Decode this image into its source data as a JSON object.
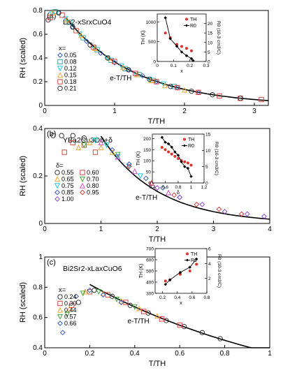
{
  "chart_data": [
    {
      "type": "scatter",
      "panel_label": "(a)",
      "compound": "La2-xSrxCuO4",
      "ylabel": "RH (scaled)",
      "xlabel": "T/TH",
      "xlim": [
        0,
        3.2
      ],
      "ylim": [
        0,
        0.8
      ],
      "xticks": [
        0,
        1,
        2,
        3
      ],
      "yticks": [
        0.0,
        0.2,
        0.4,
        0.6,
        0.8
      ],
      "legend_title": "x=",
      "fit_label": "e-T/TH",
      "fit_start": 0.3,
      "series": [
        {
          "name": "0.05",
          "marker": "diamond",
          "color": "#2a52be",
          "x": [
            0.2,
            0.4,
            0.6,
            0.8,
            1.0,
            1.2,
            1.4,
            1.6,
            1.9,
            2.2
          ],
          "y": [
            0.78,
            0.66,
            0.54,
            0.44,
            0.36,
            0.3,
            0.25,
            0.2,
            0.15,
            0.11
          ]
        },
        {
          "name": "0.08",
          "marker": "square",
          "color": "#1fa0a0",
          "x": [
            0.15,
            0.35,
            0.55,
            0.75,
            0.95,
            1.15,
            1.35,
            1.55,
            1.85
          ],
          "y": [
            0.79,
            0.7,
            0.57,
            0.47,
            0.38,
            0.31,
            0.26,
            0.21,
            0.16
          ]
        },
        {
          "name": "0.12",
          "marker": "triangle-down",
          "color": "#00c8e6",
          "x": [
            0.1,
            0.3,
            0.5,
            0.7,
            0.9,
            1.1,
            1.3,
            1.5,
            1.7
          ],
          "y": [
            0.77,
            0.73,
            0.6,
            0.49,
            0.4,
            0.33,
            0.27,
            0.22,
            0.18
          ]
        },
        {
          "name": "0.15",
          "marker": "triangle-up",
          "color": "#f0a020",
          "x": [
            0.12,
            0.32,
            0.52,
            0.72,
            0.92,
            1.12,
            1.32,
            1.52,
            1.72,
            2.0
          ],
          "y": [
            0.78,
            0.72,
            0.59,
            0.48,
            0.4,
            0.32,
            0.26,
            0.21,
            0.17,
            0.13
          ]
        },
        {
          "name": "0.18",
          "marker": "square",
          "color": "#e0302a",
          "x": [
            0.08,
            0.25,
            0.45,
            0.7,
            1.0,
            1.3,
            1.6,
            1.9,
            2.2,
            2.5,
            2.8,
            3.1
          ],
          "y": [
            0.74,
            0.76,
            0.63,
            0.49,
            0.37,
            0.27,
            0.2,
            0.15,
            0.11,
            0.08,
            0.06,
            0.05
          ]
        },
        {
          "name": "0.21",
          "marker": "circle",
          "color": "#222222",
          "x": [
            0.05,
            0.2,
            0.4,
            0.65,
            0.9,
            1.2,
            1.5,
            1.8,
            2.1,
            2.4,
            2.8
          ],
          "y": [
            0.72,
            0.78,
            0.66,
            0.51,
            0.4,
            0.3,
            0.22,
            0.16,
            0.12,
            0.09,
            0.06
          ]
        }
      ],
      "inset": {
        "xlabel": "x",
        "ylabel_left": "TH (K)",
        "ylabel_right": "R0 (10-3 cm3/C)",
        "xlim": [
          0,
          0.3
        ],
        "ylim_left": [
          0,
          1200
        ],
        "ylim_right": [
          0,
          25
        ],
        "xticks": [
          0.0,
          0.1,
          0.2,
          0.3
        ],
        "yticks_left": [
          0,
          500,
          1000
        ],
        "yticks_right": [
          0,
          5,
          10,
          15,
          20
        ],
        "legend": [
          "TH",
          "R0"
        ],
        "TH": {
          "x": [
            0.05,
            0.08,
            0.12,
            0.15,
            0.18,
            0.21
          ],
          "y": [
            720,
            600,
            430,
            380,
            330,
            270
          ]
        },
        "R0": {
          "x": [
            0.05,
            0.08,
            0.12,
            0.15,
            0.18,
            0.21,
            0.22
          ],
          "y": [
            23,
            12,
            8,
            5,
            3,
            1.5,
            0.5
          ]
        }
      }
    },
    {
      "type": "scatter",
      "panel_label": "(b)",
      "compound": "YBa2Cu3O6+δ",
      "ylabel": "RH (scaled)",
      "xlabel": "T/TH",
      "xlim": [
        0,
        4
      ],
      "ylim": [
        0,
        0.4
      ],
      "xticks": [
        0,
        1,
        2,
        3,
        4
      ],
      "yticks": [
        0.0,
        0.2,
        0.4
      ],
      "legend_title": "δ=",
      "fit_label": "e-T/TH",
      "fit_start": 1.0,
      "series": [
        {
          "name": "0.55",
          "marker": "circle",
          "color": "#222222",
          "x": [
            0.15,
            0.3,
            0.5,
            0.7
          ],
          "y": [
            0.37,
            0.37,
            0.37,
            0.36
          ]
        },
        {
          "name": "0.60",
          "marker": "square",
          "color": "#e0302a",
          "x": [
            0.35,
            0.5,
            0.7,
            0.9
          ],
          "y": [
            0.3,
            0.34,
            0.33,
            0.3
          ]
        },
        {
          "name": "0.65",
          "marker": "triangle-up",
          "color": "#f0a020",
          "x": [
            0.6,
            0.8,
            1.0,
            1.2
          ],
          "y": [
            0.32,
            0.34,
            0.32,
            0.3
          ]
        },
        {
          "name": "0.70",
          "marker": "triangle-down",
          "color": "#2ca02c",
          "x": [
            0.7,
            0.9,
            1.1,
            1.3
          ],
          "y": [
            0.33,
            0.35,
            0.33,
            0.29
          ]
        },
        {
          "name": "0.75",
          "marker": "triangle-down",
          "color": "#00c8e6",
          "x": [
            0.9,
            1.1,
            1.3,
            1.5,
            1.7
          ],
          "y": [
            0.35,
            0.33,
            0.28,
            0.24,
            0.2
          ]
        },
        {
          "name": "0.80",
          "marker": "triangle-up",
          "color": "#d040c0",
          "x": [
            1.0,
            1.3,
            1.6,
            1.9,
            2.2
          ],
          "y": [
            0.34,
            0.28,
            0.22,
            0.17,
            0.13
          ]
        },
        {
          "name": "0.85",
          "marker": "diamond",
          "color": "#2a52be",
          "x": [
            1.2,
            1.5,
            1.8,
            2.1,
            2.4
          ],
          "y": [
            0.31,
            0.25,
            0.19,
            0.15,
            0.11
          ]
        },
        {
          "name": "0.95",
          "marker": "diamond",
          "color": "#e0302a",
          "x": [
            1.5,
            1.9,
            2.3,
            2.7,
            3.1,
            3.5
          ],
          "y": [
            0.24,
            0.17,
            0.12,
            0.08,
            0.06,
            0.04
          ]
        },
        {
          "name": "1.00",
          "marker": "diamond",
          "color": "#8a40d0",
          "x": [
            2.0,
            2.4,
            2.8,
            3.2,
            3.6,
            3.9
          ],
          "y": [
            0.15,
            0.11,
            0.08,
            0.05,
            0.04,
            0.03
          ]
        }
      ],
      "inset": {
        "xlabel": "δ",
        "ylabel_left": "TH (K)",
        "ylabel_right": "R0 (10-3 cm3/C)",
        "xlim": [
          0.4,
          1.2
        ],
        "ylim_left": [
          0,
          220
        ],
        "ylim_right": [
          0,
          15
        ],
        "xticks": [
          0.4,
          0.6,
          0.8,
          1.0,
          1.2
        ],
        "yticks_left": [
          0,
          50,
          100,
          150,
          200
        ],
        "yticks_right": [
          0,
          5,
          10,
          15
        ],
        "legend": [
          "TH",
          "R0"
        ],
        "TH": {
          "x": [
            0.55,
            0.6,
            0.65,
            0.7,
            0.75,
            0.8,
            0.85,
            0.9,
            0.95,
            1.0
          ],
          "y": [
            160,
            150,
            140,
            130,
            120,
            110,
            100,
            95,
            90,
            80
          ]
        },
        "R0": {
          "x": [
            0.55,
            0.6,
            0.65,
            0.7,
            0.75,
            0.8,
            0.85,
            0.9,
            0.95,
            1.0
          ],
          "y": [
            14,
            12.5,
            12,
            11,
            9.5,
            8.5,
            6.5,
            5,
            4.5,
            2
          ]
        }
      }
    },
    {
      "type": "scatter",
      "panel_label": "(c)",
      "compound": "Bi2Sr2-xLaxCuO6",
      "ylabel": "RH (scaled)",
      "xlabel": "T/TH",
      "xlim": [
        0,
        1.0
      ],
      "ylim": [
        0.4,
        1.0
      ],
      "xticks": [
        0.0,
        0.2,
        0.4,
        0.6,
        0.8,
        1.0
      ],
      "yticks": [
        0.4,
        0.6,
        0.8,
        1.0
      ],
      "legend_title": "x=",
      "fit_label": "e-T/TH",
      "fit_start": 0.2,
      "series": [
        {
          "name": "0.24",
          "marker": "circle",
          "color": "#222222",
          "x": [
            0.15,
            0.22,
            0.3,
            0.38,
            0.46,
            0.54,
            0.62,
            0.7,
            0.78
          ],
          "y": [
            0.7,
            0.78,
            0.74,
            0.68,
            0.63,
            0.58,
            0.54,
            0.5,
            0.46
          ]
        },
        {
          "name": "0.30",
          "marker": "square",
          "color": "#e0302a",
          "x": [
            0.12,
            0.2,
            0.28,
            0.36,
            0.44,
            0.52,
            0.6
          ],
          "y": [
            0.68,
            0.77,
            0.75,
            0.7,
            0.64,
            0.59,
            0.55
          ]
        },
        {
          "name": "0.44",
          "marker": "triangle-up",
          "color": "#f0a020",
          "x": [
            0.11,
            0.18,
            0.26,
            0.34,
            0.42,
            0.5
          ],
          "y": [
            0.66,
            0.77,
            0.76,
            0.71,
            0.66,
            0.61
          ]
        },
        {
          "name": "0.57",
          "marker": "triangle-down",
          "color": "#2ca02c",
          "x": [
            0.1,
            0.17,
            0.24,
            0.32,
            0.4
          ],
          "y": [
            0.62,
            0.76,
            0.77,
            0.72,
            0.67
          ]
        },
        {
          "name": "0.66",
          "marker": "diamond",
          "color": "#2a52be",
          "x": [
            0.08,
            0.14,
            0.2,
            0.26,
            0.34
          ],
          "y": [
            0.5,
            0.74,
            0.78,
            0.75,
            0.7
          ]
        }
      ],
      "inset": {
        "xlabel": "x",
        "ylabel_left": "TH (K)",
        "ylabel_right": "R0 (10-3 cm3/C)",
        "xlim": [
          0.1,
          0.8
        ],
        "ylim_left": [
          300,
          700
        ],
        "ylim_right": [
          0,
          6
        ],
        "xticks": [
          0.2,
          0.4,
          0.6,
          0.8
        ],
        "yticks_left": [
          300,
          400,
          500,
          600,
          700
        ],
        "yticks_right": [
          2,
          4,
          6
        ],
        "legend": [
          "TH",
          "R0"
        ],
        "TH": {
          "x": [
            0.24,
            0.3,
            0.44,
            0.57,
            0.66
          ],
          "y": [
            410,
            420,
            470,
            500,
            560
          ]
        },
        "R0": {
          "x": [
            0.24,
            0.3,
            0.44,
            0.57,
            0.66
          ],
          "y": [
            1.2,
            1.8,
            2.8,
            3.5,
            4.6
          ]
        }
      }
    }
  ]
}
